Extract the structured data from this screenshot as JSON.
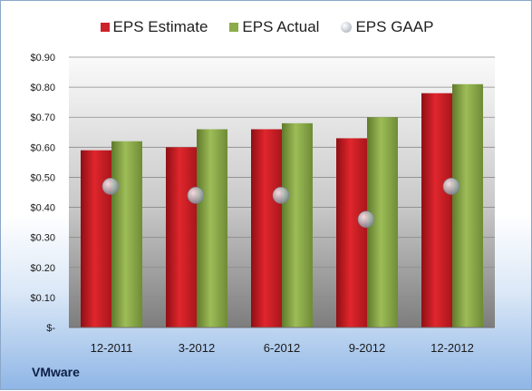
{
  "legend": {
    "estimate": "EPS Estimate",
    "actual": "EPS Actual",
    "gaap": "EPS GAAP"
  },
  "company_label": "VMware",
  "colors": {
    "estimate": "#cc2229",
    "actual": "#8cab4a",
    "gaap": "#a7aeb9",
    "plot_top": "#ffffff",
    "plot_bottom": "#8a8a8a"
  },
  "chart_data": {
    "type": "bar",
    "categories": [
      "12-2011",
      "3-2012",
      "6-2012",
      "9-2012",
      "12-2012"
    ],
    "series": [
      {
        "name": "EPS Estimate",
        "values": [
          0.59,
          0.6,
          0.66,
          0.63,
          0.78
        ]
      },
      {
        "name": "EPS Actual",
        "values": [
          0.62,
          0.66,
          0.68,
          0.7,
          0.81
        ]
      },
      {
        "name": "EPS GAAP",
        "values": [
          0.47,
          0.44,
          0.44,
          0.36,
          0.47
        ],
        "style": "marker"
      }
    ],
    "yticks": [
      "$-",
      "$0.10",
      "$0.20",
      "$0.30",
      "$0.40",
      "$0.50",
      "$0.60",
      "$0.70",
      "$0.80",
      "$0.90"
    ],
    "ylim": [
      0,
      0.9
    ],
    "grid": true,
    "legend_position": "top"
  }
}
